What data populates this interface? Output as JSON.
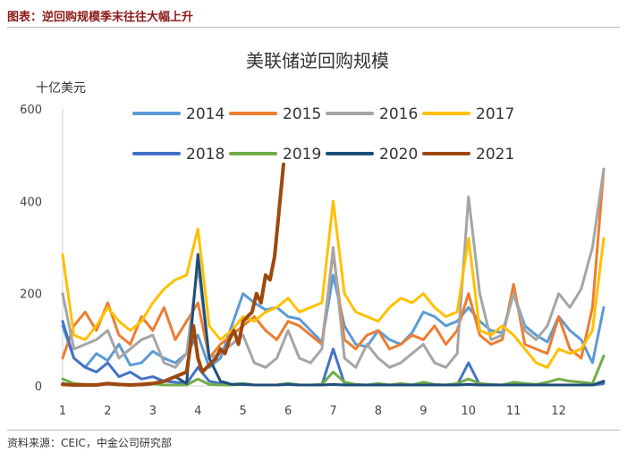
{
  "figure": {
    "caption": "图表：逆回购规模季末往往大幅上升",
    "source": "资料来源：CEIC，中金公司研究部"
  },
  "chart_data": {
    "type": "line",
    "title": "美联储逆回购规模",
    "ylabel": "十亿美元",
    "xlabel": "",
    "xlim": [
      1,
      13
    ],
    "ylim": [
      0,
      600
    ],
    "x_ticks": [
      "1",
      "2",
      "3",
      "4",
      "5",
      "6",
      "7",
      "8",
      "9",
      "10",
      "11",
      "12"
    ],
    "y_ticks": [
      "0",
      "200",
      "400",
      "600"
    ],
    "grid": false,
    "legend_position": "top",
    "series": [
      {
        "name": "2014",
        "color": "#5B9BD5",
        "x": [
          1,
          1.25,
          1.5,
          1.75,
          2,
          2.25,
          2.5,
          2.75,
          3,
          3.25,
          3.5,
          3.75,
          4,
          4.25,
          4.5,
          4.75,
          5,
          5.25,
          5.5,
          5.75,
          6,
          6.25,
          6.5,
          6.75,
          7,
          7.25,
          7.5,
          7.75,
          8,
          8.25,
          8.5,
          8.75,
          9,
          9.25,
          9.5,
          9.75,
          10,
          10.25,
          10.5,
          10.75,
          11,
          11.25,
          11.5,
          11.75,
          12,
          12.25,
          12.5,
          12.75,
          13
        ],
        "y": [
          130,
          60,
          40,
          70,
          55,
          90,
          45,
          50,
          75,
          60,
          50,
          70,
          110,
          40,
          60,
          130,
          200,
          180,
          165,
          170,
          150,
          145,
          120,
          95,
          240,
          130,
          90,
          85,
          120,
          100,
          90,
          115,
          160,
          150,
          130,
          140,
          170,
          140,
          120,
          115,
          200,
          130,
          110,
          95,
          150,
          120,
          100,
          50,
          170
        ]
      },
      {
        "name": "2015",
        "color": "#ED7D31",
        "x": [
          1,
          1.25,
          1.5,
          1.75,
          2,
          2.25,
          2.5,
          2.75,
          3,
          3.25,
          3.5,
          3.75,
          4,
          4.25,
          4.5,
          4.75,
          5,
          5.25,
          5.5,
          5.75,
          6,
          6.25,
          6.5,
          6.75,
          7,
          7.25,
          7.5,
          7.75,
          8,
          8.25,
          8.5,
          8.75,
          9,
          9.25,
          9.5,
          9.75,
          10,
          10.25,
          10.5,
          10.75,
          11,
          11.25,
          11.5,
          11.75,
          12,
          12.25,
          12.5,
          12.75,
          13
        ],
        "y": [
          60,
          130,
          160,
          120,
          180,
          110,
          90,
          150,
          120,
          170,
          100,
          140,
          180,
          60,
          90,
          110,
          130,
          150,
          120,
          100,
          140,
          130,
          110,
          90,
          290,
          100,
          80,
          110,
          120,
          80,
          90,
          110,
          100,
          130,
          90,
          120,
          200,
          110,
          90,
          100,
          220,
          90,
          80,
          70,
          150,
          80,
          60,
          170,
          470
        ]
      },
      {
        "name": "2016",
        "color": "#A5A5A5",
        "x": [
          1,
          1.25,
          1.5,
          1.75,
          2,
          2.25,
          2.5,
          2.75,
          3,
          3.25,
          3.5,
          3.75,
          4,
          4.25,
          4.5,
          4.75,
          5,
          5.25,
          5.5,
          5.75,
          6,
          6.25,
          6.5,
          6.75,
          7,
          7.25,
          7.5,
          7.75,
          8,
          8.25,
          8.5,
          8.75,
          9,
          9.25,
          9.5,
          9.75,
          10,
          10.25,
          10.5,
          10.75,
          11,
          11.25,
          11.5,
          11.75,
          12,
          12.25,
          12.5,
          12.75,
          13
        ],
        "y": [
          200,
          80,
          90,
          100,
          120,
          60,
          80,
          100,
          110,
          50,
          40,
          70,
          260,
          60,
          70,
          90,
          110,
          50,
          40,
          60,
          120,
          60,
          50,
          80,
          300,
          60,
          40,
          90,
          60,
          40,
          50,
          70,
          90,
          50,
          40,
          70,
          410,
          200,
          100,
          110,
          200,
          120,
          100,
          130,
          200,
          170,
          210,
          300,
          470
        ]
      },
      {
        "name": "2017",
        "color": "#FFC000",
        "x": [
          1,
          1.25,
          1.5,
          1.75,
          2,
          2.25,
          2.5,
          2.75,
          3,
          3.25,
          3.5,
          3.75,
          4,
          4.25,
          4.5,
          4.75,
          5,
          5.25,
          5.5,
          5.75,
          6,
          6.25,
          6.5,
          6.75,
          7,
          7.25,
          7.5,
          7.75,
          8,
          8.25,
          8.5,
          8.75,
          9,
          9.25,
          9.5,
          9.75,
          10,
          10.25,
          10.5,
          10.75,
          11,
          11.25,
          11.5,
          11.75,
          12,
          12.25,
          12.5,
          12.75,
          13
        ],
        "y": [
          285,
          110,
          100,
          130,
          170,
          140,
          120,
          140,
          180,
          210,
          230,
          240,
          340,
          130,
          100,
          120,
          150,
          140,
          160,
          170,
          190,
          160,
          170,
          180,
          400,
          200,
          160,
          150,
          140,
          170,
          190,
          180,
          200,
          170,
          150,
          160,
          320,
          120,
          110,
          130,
          110,
          80,
          50,
          40,
          80,
          70,
          80,
          120,
          320
        ]
      },
      {
        "name": "2018",
        "color": "#4472C4",
        "x": [
          1,
          1.25,
          1.5,
          1.75,
          2,
          2.25,
          2.5,
          2.75,
          3,
          3.25,
          3.5,
          3.75,
          4,
          4.25,
          4.5,
          4.75,
          5,
          5.25,
          5.5,
          5.75,
          6,
          6.25,
          6.5,
          6.75,
          7,
          7.25,
          7.5,
          7.75,
          8,
          8.25,
          8.5,
          8.75,
          9,
          9.25,
          9.5,
          9.75,
          10,
          10.25,
          10.5,
          10.75,
          11,
          11.25,
          11.5,
          11.75,
          12,
          12.25,
          12.5,
          12.75,
          13
        ],
        "y": [
          140,
          60,
          40,
          30,
          50,
          20,
          30,
          15,
          20,
          10,
          8,
          5,
          40,
          10,
          5,
          3,
          5,
          2,
          2,
          2,
          5,
          2,
          2,
          2,
          80,
          5,
          2,
          2,
          2,
          2,
          2,
          2,
          5,
          2,
          2,
          2,
          50,
          2,
          2,
          2,
          5,
          2,
          2,
          2,
          2,
          2,
          2,
          2,
          5
        ]
      },
      {
        "name": "2019",
        "color": "#70AD47",
        "x": [
          1,
          1.25,
          1.5,
          1.75,
          2,
          2.25,
          2.5,
          2.75,
          3,
          3.25,
          3.5,
          3.75,
          4,
          4.25,
          4.5,
          4.75,
          5,
          5.25,
          5.5,
          5.75,
          6,
          6.25,
          6.5,
          6.75,
          7,
          7.25,
          7.5,
          7.75,
          8,
          8.25,
          8.5,
          8.75,
          9,
          9.25,
          9.5,
          9.75,
          10,
          10.25,
          10.5,
          10.75,
          11,
          11.25,
          11.5,
          11.75,
          12,
          12.25,
          12.5,
          12.75,
          13
        ],
        "y": [
          15,
          5,
          3,
          2,
          5,
          2,
          2,
          2,
          5,
          2,
          2,
          2,
          15,
          3,
          2,
          2,
          5,
          2,
          2,
          2,
          5,
          2,
          2,
          3,
          30,
          8,
          3,
          2,
          5,
          2,
          5,
          2,
          8,
          3,
          2,
          5,
          15,
          5,
          3,
          2,
          8,
          5,
          3,
          8,
          15,
          10,
          8,
          5,
          65
        ]
      },
      {
        "name": "2020",
        "color": "#1F4E79",
        "x": [
          1,
          1.25,
          1.5,
          1.75,
          2,
          2.25,
          2.5,
          2.75,
          3,
          3.25,
          3.5,
          3.75,
          4,
          4.25,
          4.5,
          4.75,
          5,
          5.25,
          5.5,
          5.75,
          6,
          6.25,
          6.5,
          6.75,
          7,
          7.25,
          7.5,
          7.75,
          8,
          8.25,
          8.5,
          8.75,
          9,
          9.25,
          9.5,
          9.75,
          10,
          10.25,
          10.5,
          10.75,
          11,
          11.25,
          11.5,
          11.75,
          12,
          12.25,
          12.5,
          12.75,
          13
        ],
        "y": [
          5,
          2,
          2,
          2,
          5,
          2,
          2,
          2,
          5,
          10,
          20,
          5,
          285,
          60,
          10,
          3,
          3,
          2,
          2,
          2,
          3,
          2,
          2,
          2,
          3,
          2,
          2,
          2,
          2,
          2,
          2,
          2,
          2,
          2,
          2,
          2,
          3,
          2,
          2,
          2,
          2,
          2,
          2,
          2,
          2,
          2,
          2,
          2,
          10
        ]
      },
      {
        "name": "2021",
        "color": "#9E480E",
        "x": [
          1,
          1.25,
          1.5,
          1.75,
          2,
          2.25,
          2.5,
          2.75,
          3,
          3.25,
          3.5,
          3.75,
          3.9,
          4,
          4.1,
          4.2,
          4.3,
          4.4,
          4.5,
          4.6,
          4.7,
          4.8,
          4.9,
          5,
          5.1,
          5.2,
          5.3,
          5.4,
          5.5,
          5.6,
          5.7,
          5.8,
          5.9
        ],
        "y": [
          3,
          2,
          2,
          2,
          5,
          3,
          2,
          3,
          5,
          10,
          20,
          30,
          130,
          60,
          30,
          40,
          50,
          60,
          80,
          70,
          100,
          120,
          90,
          140,
          150,
          160,
          200,
          180,
          240,
          230,
          280,
          380,
          480
        ]
      }
    ]
  }
}
